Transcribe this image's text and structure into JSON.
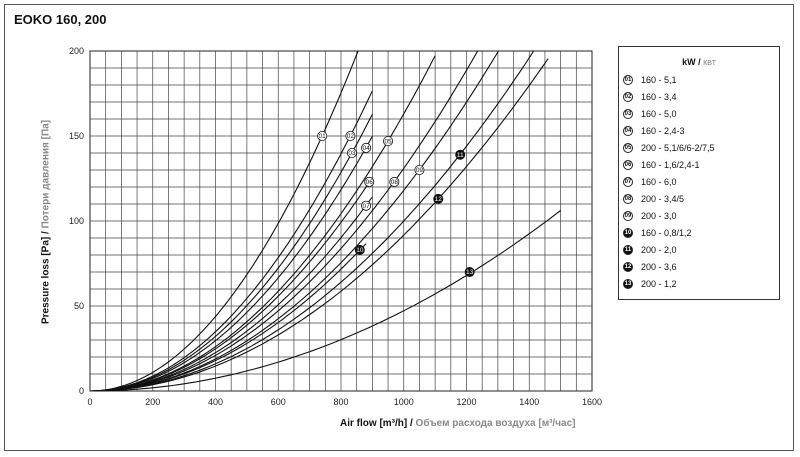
{
  "title": "EOKO 160, 200",
  "legend": {
    "title_main": "kW /",
    "title_alt": " квт",
    "items": [
      {
        "marker": "01",
        "label": "160 - 5,1",
        "filled": false
      },
      {
        "marker": "02",
        "label": "160 - 3,4",
        "filled": false
      },
      {
        "marker": "03",
        "label": "160 - 5,0",
        "filled": false
      },
      {
        "marker": "04",
        "label": "160 - 2,4-3",
        "filled": false
      },
      {
        "marker": "05",
        "label": "200 - 5,1/6/6-2/7,5",
        "filled": false
      },
      {
        "marker": "06",
        "label": "160 - 1,6/2,4-1",
        "filled": false
      },
      {
        "marker": "07",
        "label": "160 - 6,0",
        "filled": false
      },
      {
        "marker": "08",
        "label": "200 - 3,4/5",
        "filled": false
      },
      {
        "marker": "09",
        "label": "200 - 3,0",
        "filled": false
      },
      {
        "marker": "10",
        "label": "160 - 0,8/1,2",
        "filled": true
      },
      {
        "marker": "11",
        "label": "200 - 2,0",
        "filled": true
      },
      {
        "marker": "12",
        "label": "200 - 3,6",
        "filled": true
      },
      {
        "marker": "13",
        "label": "200 - 1,2",
        "filled": true
      }
    ]
  },
  "axes": {
    "ylabel_main": "Pressure loss [Pa] /",
    "ylabel_alt": " Потери давления [Па]",
    "xlabel_main": "Air flow [m³/h] /",
    "xlabel_alt": " Объем расхода воздуха [м³/час]"
  },
  "chart_data": {
    "type": "line",
    "xlim": [
      0,
      1600
    ],
    "ylim": [
      0,
      200
    ],
    "xticks": [
      0,
      200,
      400,
      600,
      800,
      1000,
      1200,
      1400,
      1600
    ],
    "yticks": [
      0,
      50,
      100,
      150,
      200
    ],
    "grid": true,
    "legend_position": "right",
    "series": [
      {
        "name": "01",
        "label_at": [
          740,
          150
        ],
        "x": [
          0,
          900
        ],
        "k": 0.000274,
        "n": 2
      },
      {
        "name": "02",
        "label_at": [
          830,
          150
        ],
        "x": [
          0,
          900
        ],
        "k": 0.000218,
        "n": 2
      },
      {
        "name": "03",
        "label_at": [
          835,
          140
        ],
        "x": [
          0,
          900
        ],
        "k": 0.000201,
        "n": 2
      },
      {
        "name": "04",
        "label_at": [
          880,
          143
        ],
        "x": [
          0,
          900
        ],
        "k": 0.000185,
        "n": 2
      },
      {
        "name": "05",
        "label_at": [
          950,
          147
        ],
        "x": [
          0,
          1100
        ],
        "k": 0.000163,
        "n": 2
      },
      {
        "name": "06",
        "label_at": [
          890,
          123
        ],
        "x": [
          0,
          900
        ],
        "k": 0.000155,
        "n": 2
      },
      {
        "name": "07",
        "label_at": [
          880,
          109
        ],
        "x": [
          0,
          900
        ],
        "k": 0.000141,
        "n": 2
      },
      {
        "name": "08",
        "label_at": [
          970,
          123
        ],
        "x": [
          0,
          1450
        ],
        "k": 0.000131,
        "n": 2
      },
      {
        "name": "09",
        "label_at": [
          1050,
          130
        ],
        "x": [
          0,
          1480
        ],
        "k": 0.000118,
        "n": 2
      },
      {
        "name": "10",
        "label_at": [
          860,
          83
        ],
        "x": [
          0,
          880
        ],
        "k": 0.000112,
        "n": 2
      },
      {
        "name": "11",
        "label_at": [
          1180,
          139
        ],
        "x": [
          0,
          1520
        ],
        "k": 0.0001,
        "n": 2
      },
      {
        "name": "12",
        "label_at": [
          1110,
          113
        ],
        "x": [
          0,
          1460
        ],
        "k": 9.17e-05,
        "n": 2
      },
      {
        "name": "13",
        "label_at": [
          1210,
          70
        ],
        "x": [
          0,
          1500
        ],
        "k": 4.72e-05,
        "n": 2
      }
    ]
  }
}
